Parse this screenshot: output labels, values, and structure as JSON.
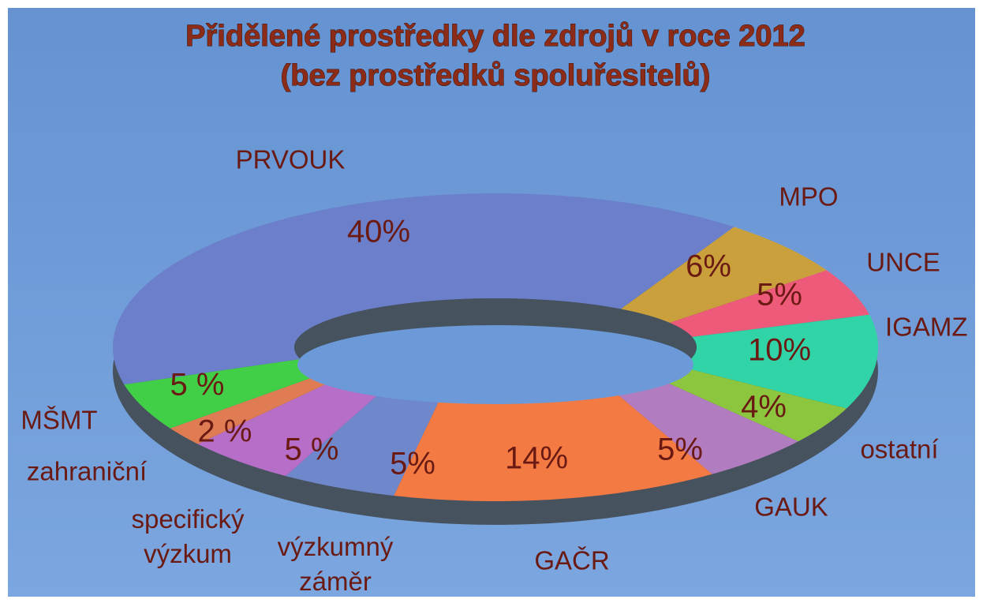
{
  "chart_data": {
    "type": "donut",
    "title": "Přidělené prostředky dle zdrojů v roce 2012",
    "subtitle": "(bez prostředků spoluřesitelů)",
    "categories": [
      "PRVOUK",
      "MPO",
      "UNCE",
      "IGAMZ",
      "ostatní",
      "GAUK",
      "GAČR",
      "výzkumný záměr",
      "specifický výzkum",
      "zahraniční",
      "MŠMT"
    ],
    "values": [
      40,
      6,
      5,
      10,
      4,
      5,
      14,
      5,
      5,
      2,
      5
    ],
    "value_labels": [
      "40%",
      "6%",
      "5%",
      "10%",
      "4%",
      "5%",
      "14%",
      "5%",
      "5 %",
      "2 %",
      "5 %"
    ],
    "colors": [
      "#6b7fcb",
      "#c9a03c",
      "#ee5a7a",
      "#30d4a6",
      "#8cc63e",
      "#b27cc0",
      "#f47a44",
      "#6f88cc",
      "#b66ec8",
      "#df7c54",
      "#42cf48"
    ]
  }
}
